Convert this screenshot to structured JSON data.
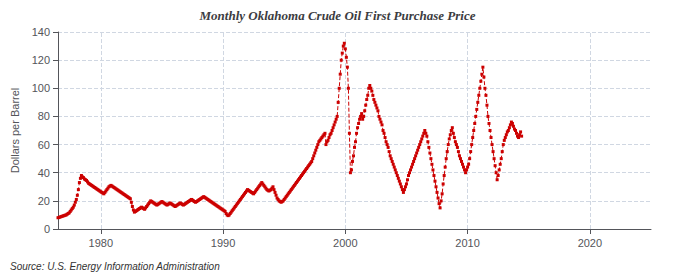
{
  "chart_data": {
    "type": "line",
    "title": "Monthly Oklahoma Crude Oil First Purchase Price",
    "ylabel": "Dollars per Barrel",
    "annotations": [
      "Source: U.S. Energy Information Administration"
    ],
    "color": "#cc0000",
    "marker": "square",
    "line_style": "dashed",
    "grid": true,
    "xlim": [
      1976.5,
      2025.0
    ],
    "xticks": [
      1980,
      1990,
      2000,
      2010,
      2020
    ],
    "ylim": [
      0,
      140
    ],
    "yticks": [
      0,
      20,
      40,
      60,
      80,
      100,
      120,
      140
    ],
    "x": [
      1976.5,
      1976.5833,
      1976.6667,
      1976.75,
      1976.8333,
      1976.9167,
      1977,
      1977.0833,
      1977.1667,
      1977.25,
      1977.3333,
      1977.4167,
      1977.5,
      1977.5833,
      1977.6667,
      1977.75,
      1977.8333,
      1977.9167,
      1978,
      1978.0833,
      1978.1667,
      1978.25,
      1978.3333,
      1978.4167,
      1978.5,
      1978.5833,
      1978.6667,
      1978.75,
      1978.8333,
      1978.9167,
      1979,
      1979.0833,
      1979.1667,
      1979.25,
      1979.3333,
      1979.4167,
      1979.5,
      1979.5833,
      1979.6667,
      1979.75,
      1979.8333,
      1979.9167,
      1980,
      1980.0833,
      1980.1667,
      1980.25,
      1980.3333,
      1980.4167,
      1980.5,
      1980.5833,
      1980.6667,
      1980.75,
      1980.8333,
      1980.9167,
      1981,
      1981.0833,
      1981.1667,
      1981.25,
      1981.3333,
      1981.4167,
      1981.5,
      1981.5833,
      1981.6667,
      1981.75,
      1981.8333,
      1981.9167,
      1982,
      1982.0833,
      1982.1667,
      1982.25,
      1982.3333,
      1982.4167,
      1982.5,
      1982.5833,
      1982.6667,
      1982.75,
      1982.8333,
      1982.9167,
      1983,
      1983.0833,
      1983.1667,
      1983.25,
      1983.3333,
      1983.4167,
      1983.5,
      1983.5833,
      1983.6667,
      1983.75,
      1983.8333,
      1983.9167,
      1984,
      1984.0833,
      1984.1667,
      1984.25,
      1984.3333,
      1984.4167,
      1984.5,
      1984.5833,
      1984.6667,
      1984.75,
      1984.8333,
      1984.9167,
      1985,
      1985.0833,
      1985.1667,
      1985.25,
      1985.3333,
      1985.4167,
      1985.5,
      1985.5833,
      1985.6667,
      1985.75,
      1985.8333,
      1985.9167,
      1986,
      1986.0833,
      1986.1667,
      1986.25,
      1986.3333,
      1986.4167,
      1986.5,
      1986.5833,
      1986.6667,
      1986.75,
      1986.8333,
      1986.9167,
      1987,
      1987.0833,
      1987.1667,
      1987.25,
      1987.3333,
      1987.4167,
      1987.5,
      1987.5833,
      1987.6667,
      1987.75,
      1987.8333,
      1987.9167,
      1988,
      1988.0833,
      1988.1667,
      1988.25,
      1988.3333,
      1988.4167,
      1988.5,
      1988.5833,
      1988.6667,
      1988.75,
      1988.8333,
      1988.9167,
      1989,
      1989.0833,
      1989.1667,
      1989.25,
      1989.3333,
      1989.4167,
      1989.5,
      1989.5833,
      1989.6667,
      1989.75,
      1989.8333,
      1989.9167,
      1990,
      1990.0833,
      1990.1667,
      1990.25,
      1990.3333,
      1990.4167,
      1990.5,
      1990.5833,
      1990.6667,
      1990.75,
      1990.8333,
      1990.9167,
      1991,
      1991.0833,
      1991.1667,
      1991.25,
      1991.3333,
      1991.4167,
      1991.5,
      1991.5833,
      1991.6667,
      1991.75,
      1991.8333,
      1991.9167,
      1992,
      1992.0833,
      1992.1667,
      1992.25,
      1992.3333,
      1992.4167,
      1992.5,
      1992.5833,
      1992.6667,
      1992.75,
      1992.8333,
      1992.9167,
      1993,
      1993.0833,
      1993.1667,
      1993.25,
      1993.3333,
      1993.4167,
      1993.5,
      1993.5833,
      1993.6667,
      1993.75,
      1993.8333,
      1993.9167,
      1994,
      1994.0833,
      1994.1667,
      1994.25,
      1994.3333,
      1994.4167,
      1994.5,
      1994.5833,
      1994.6667,
      1994.75,
      1994.8333,
      1994.9167,
      1995,
      1995.0833,
      1995.1667,
      1995.25,
      1995.3333,
      1995.4167,
      1995.5,
      1995.5833,
      1995.6667,
      1995.75,
      1995.8333,
      1995.9167,
      1996,
      1996.0833,
      1996.1667,
      1996.25,
      1996.3333,
      1996.4167,
      1996.5,
      1996.5833,
      1996.6667,
      1996.75,
      1996.8333,
      1996.9167,
      1997,
      1997.0833,
      1997.1667,
      1997.25,
      1997.3333,
      1997.4167,
      1997.5,
      1997.5833,
      1997.6667,
      1997.75,
      1997.8333,
      1997.9167,
      1998,
      1998.0833,
      1998.1667,
      1998.25,
      1998.3333,
      1998.4167,
      1998.5,
      1998.5833,
      1998.6667,
      1998.75,
      1998.8333,
      1998.9167,
      1999,
      1999.0833,
      1999.1667,
      1999.25,
      1999.3333,
      1999.4167,
      1999.5,
      1999.5833,
      1999.6667,
      1999.75,
      1999.8333,
      1999.9167,
      2000,
      2000.0833,
      2000.1667,
      2000.25,
      2000.3333,
      2000.4167,
      2000.5,
      2000.5833,
      2000.6667,
      2000.75,
      2000.8333,
      2000.9167,
      2001,
      2001.0833,
      2001.1667,
      2001.25,
      2001.3333,
      2001.4167,
      2001.5,
      2001.5833,
      2001.6667,
      2001.75,
      2001.8333,
      2001.9167,
      2002,
      2002.0833,
      2002.1667,
      2002.25,
      2002.3333,
      2002.4167,
      2002.5,
      2002.5833,
      2002.6667,
      2002.75,
      2002.8333,
      2002.9167,
      2003,
      2003.0833,
      2003.1667,
      2003.25,
      2003.3333,
      2003.4167,
      2003.5,
      2003.5833,
      2003.6667,
      2003.75,
      2003.8333,
      2003.9167,
      2004,
      2004.0833,
      2004.1667,
      2004.25,
      2004.3333,
      2004.4167,
      2004.5,
      2004.5833,
      2004.6667,
      2004.75,
      2004.8333,
      2004.9167,
      2005,
      2005.0833,
      2005.1667,
      2005.25,
      2005.3333,
      2005.4167,
      2005.5,
      2005.5833,
      2005.6667,
      2005.75,
      2005.8333,
      2005.9167,
      2006,
      2006.0833,
      2006.1667,
      2006.25,
      2006.3333,
      2006.4167,
      2006.5,
      2006.5833,
      2006.6667,
      2006.75,
      2006.8333,
      2006.9167,
      2007,
      2007.0833,
      2007.1667,
      2007.25,
      2007.3333,
      2007.4167,
      2007.5,
      2007.5833,
      2007.6667,
      2007.75,
      2007.8333,
      2007.9167,
      2008,
      2008.0833,
      2008.1667,
      2008.25,
      2008.3333,
      2008.4167,
      2008.5,
      2008.5833,
      2008.6667,
      2008.75,
      2008.8333,
      2008.9167,
      2009,
      2009.0833,
      2009.1667,
      2009.25,
      2009.3333,
      2009.4167,
      2009.5,
      2009.5833,
      2009.6667,
      2009.75,
      2009.8333,
      2009.9167,
      2010,
      2010.0833,
      2010.1667,
      2010.25,
      2010.3333,
      2010.4167,
      2010.5,
      2010.5833,
      2010.6667,
      2010.75,
      2010.8333,
      2010.9167,
      2011,
      2011.0833,
      2011.1667,
      2011.25,
      2011.3333,
      2011.4167,
      2011.5,
      2011.5833,
      2011.6667,
      2011.75,
      2011.8333,
      2011.9167,
      2012,
      2012.0833,
      2012.1667,
      2012.25,
      2012.3333,
      2012.4167,
      2012.5,
      2012.5833,
      2012.6667,
      2012.75,
      2012.8333,
      2012.9167,
      2013,
      2013.0833,
      2013.1667,
      2013.25,
      2013.3333,
      2013.4167,
      2013.5,
      2013.5833,
      2013.6667,
      2013.75,
      2013.8333,
      2013.9167,
      2014,
      2014.0833,
      2014.1667,
      2014.25,
      2014.3333,
      2014.4167
    ],
    "values": [
      8.0,
      8.2,
      8.5,
      8.8,
      9.0,
      9.3,
      9.5,
      9.8,
      10.0,
      10.5,
      11.0,
      11.5,
      12.5,
      13.5,
      14.5,
      15.5,
      17.0,
      19.0,
      21.0,
      24.0,
      28.0,
      33.0,
      36.0,
      38.0,
      37.0,
      36.5,
      35.5,
      35.0,
      34.5,
      33.5,
      32.5,
      32.0,
      31.5,
      31.0,
      30.5,
      30.0,
      29.5,
      29.0,
      28.5,
      28.0,
      27.5,
      27.0,
      26.5,
      26.0,
      25.5,
      25.0,
      26.0,
      27.0,
      28.0,
      29.0,
      30.0,
      30.5,
      31.0,
      30.5,
      30.0,
      29.5,
      29.0,
      28.5,
      28.0,
      27.5,
      27.0,
      26.5,
      26.0,
      25.5,
      25.0,
      24.5,
      24.0,
      23.5,
      23.0,
      22.5,
      22.0,
      21.5,
      19.0,
      16.0,
      13.5,
      12.0,
      12.5,
      13.0,
      13.5,
      14.0,
      14.5,
      15.0,
      15.5,
      15.0,
      14.5,
      14.0,
      15.0,
      16.0,
      17.0,
      18.0,
      19.0,
      20.0,
      19.5,
      19.0,
      18.5,
      18.0,
      17.5,
      17.0,
      17.5,
      18.0,
      18.5,
      19.0,
      19.5,
      19.0,
      18.5,
      18.0,
      17.5,
      17.0,
      17.5,
      18.0,
      18.5,
      18.0,
      17.5,
      17.0,
      16.5,
      16.0,
      16.5,
      17.0,
      17.5,
      18.0,
      18.5,
      18.0,
      17.5,
      17.0,
      17.5,
      18.0,
      18.5,
      19.0,
      19.5,
      20.0,
      20.5,
      21.0,
      20.5,
      20.0,
      19.5,
      19.0,
      19.5,
      20.0,
      20.5,
      21.0,
      21.5,
      22.0,
      22.5,
      23.0,
      22.5,
      22.0,
      21.5,
      21.0,
      20.5,
      20.0,
      19.5,
      19.0,
      18.5,
      18.0,
      17.5,
      17.0,
      16.5,
      16.0,
      15.5,
      15.0,
      14.5,
      14.0,
      13.5,
      13.0,
      12.5,
      11.0,
      10.0,
      9.5,
      10.0,
      11.0,
      12.0,
      13.0,
      14.0,
      15.0,
      16.0,
      17.0,
      18.0,
      19.0,
      20.0,
      21.0,
      22.0,
      23.0,
      24.0,
      25.0,
      26.0,
      27.0,
      28.0,
      27.5,
      27.0,
      26.5,
      26.0,
      25.5,
      25.0,
      26.0,
      27.0,
      28.0,
      29.0,
      30.0,
      31.0,
      32.0,
      33.0,
      32.0,
      31.0,
      30.0,
      29.0,
      28.0,
      27.5,
      27.0,
      27.5,
      28.0,
      29.0,
      30.0,
      28.0,
      26.0,
      24.0,
      22.0,
      21.0,
      20.0,
      19.5,
      19.0,
      19.5,
      20.0,
      21.0,
      22.0,
      23.0,
      24.0,
      25.0,
      26.0,
      27.0,
      28.0,
      29.0,
      30.0,
      31.0,
      32.0,
      33.0,
      34.0,
      35.0,
      36.0,
      37.0,
      38.0,
      39.0,
      40.0,
      41.0,
      42.0,
      43.0,
      44.0,
      45.0,
      46.0,
      47.0,
      48.0,
      50.0,
      52.0,
      54.0,
      56.0,
      58.0,
      60.0,
      62.0,
      63.0,
      64.0,
      65.0,
      66.0,
      67.0,
      68.0,
      60.0,
      62.0,
      63.0,
      65.0,
      67.0,
      68.0,
      70.0,
      72.0,
      74.0,
      76.0,
      78.0,
      80.0,
      90.0,
      100.0,
      110.0,
      120.0,
      125.0,
      130.0,
      132.0,
      128.0,
      122.0,
      115.0,
      100.0,
      68.0,
      40.0,
      42.0,
      48.0,
      52.0,
      58.0,
      62.0,
      68.0,
      72.0,
      75.0,
      78.0,
      80.0,
      82.0,
      78.0,
      80.0,
      84.0,
      88.0,
      92.0,
      95.0,
      100.0,
      102.0,
      100.0,
      98.0,
      95.0,
      92.0,
      90.0,
      88.0,
      86.0,
      84.0,
      80.0,
      78.0,
      76.0,
      74.0,
      70.0,
      68.0,
      65.0,
      62.0,
      60.0,
      58.0,
      55.0,
      52.0,
      50.0,
      48.0,
      46.0,
      44.0,
      42.0,
      40.0,
      38.0,
      36.0,
      34.0,
      32.0,
      30.0,
      28.0,
      26.0,
      28.0,
      30.0,
      32.0,
      35.0,
      38.0,
      40.0,
      42.0,
      44.0,
      46.0,
      48.0,
      50.0,
      52.0,
      54.0,
      56.0,
      58.0,
      60.0,
      62.0,
      64.0,
      66.0,
      68.0,
      70.0,
      68.0,
      66.0,
      62.0,
      58.0,
      54.0,
      50.0,
      46.0,
      42.0,
      38.0,
      34.0,
      30.0,
      26.0,
      22.0,
      18.0,
      15.0,
      20.0,
      25.0,
      32.0,
      38.0,
      44.0,
      50.0,
      55.0,
      60.0,
      64.0,
      67.0,
      70.0,
      72.0,
      68.0,
      65.0,
      62.0,
      60.0,
      58.0,
      55.0,
      52.0,
      50.0,
      48.0,
      46.0,
      44.0,
      42.0,
      40.0,
      42.0,
      44.0,
      46.0,
      50.0,
      55.0,
      60.0,
      65.0,
      70.0,
      75.0,
      80.0,
      85.0,
      90.0,
      95.0,
      100.0,
      105.0,
      110.0,
      115.0,
      108.0,
      100.0,
      95.0,
      88.0,
      80.0,
      75.0,
      70.0,
      65.0,
      60.0,
      55.0,
      50.0,
      45.0,
      40.0,
      35.0,
      38.0,
      42.0,
      46.0,
      50.0,
      55.0,
      60.0,
      63.0,
      65.0,
      67.0,
      69.0,
      70.0,
      72.0,
      74.0,
      76.0,
      75.0,
      73.0,
      71.0,
      70.0,
      68.0,
      66.0,
      65.0,
      67.0,
      69.0,
      66.0
    ]
  }
}
